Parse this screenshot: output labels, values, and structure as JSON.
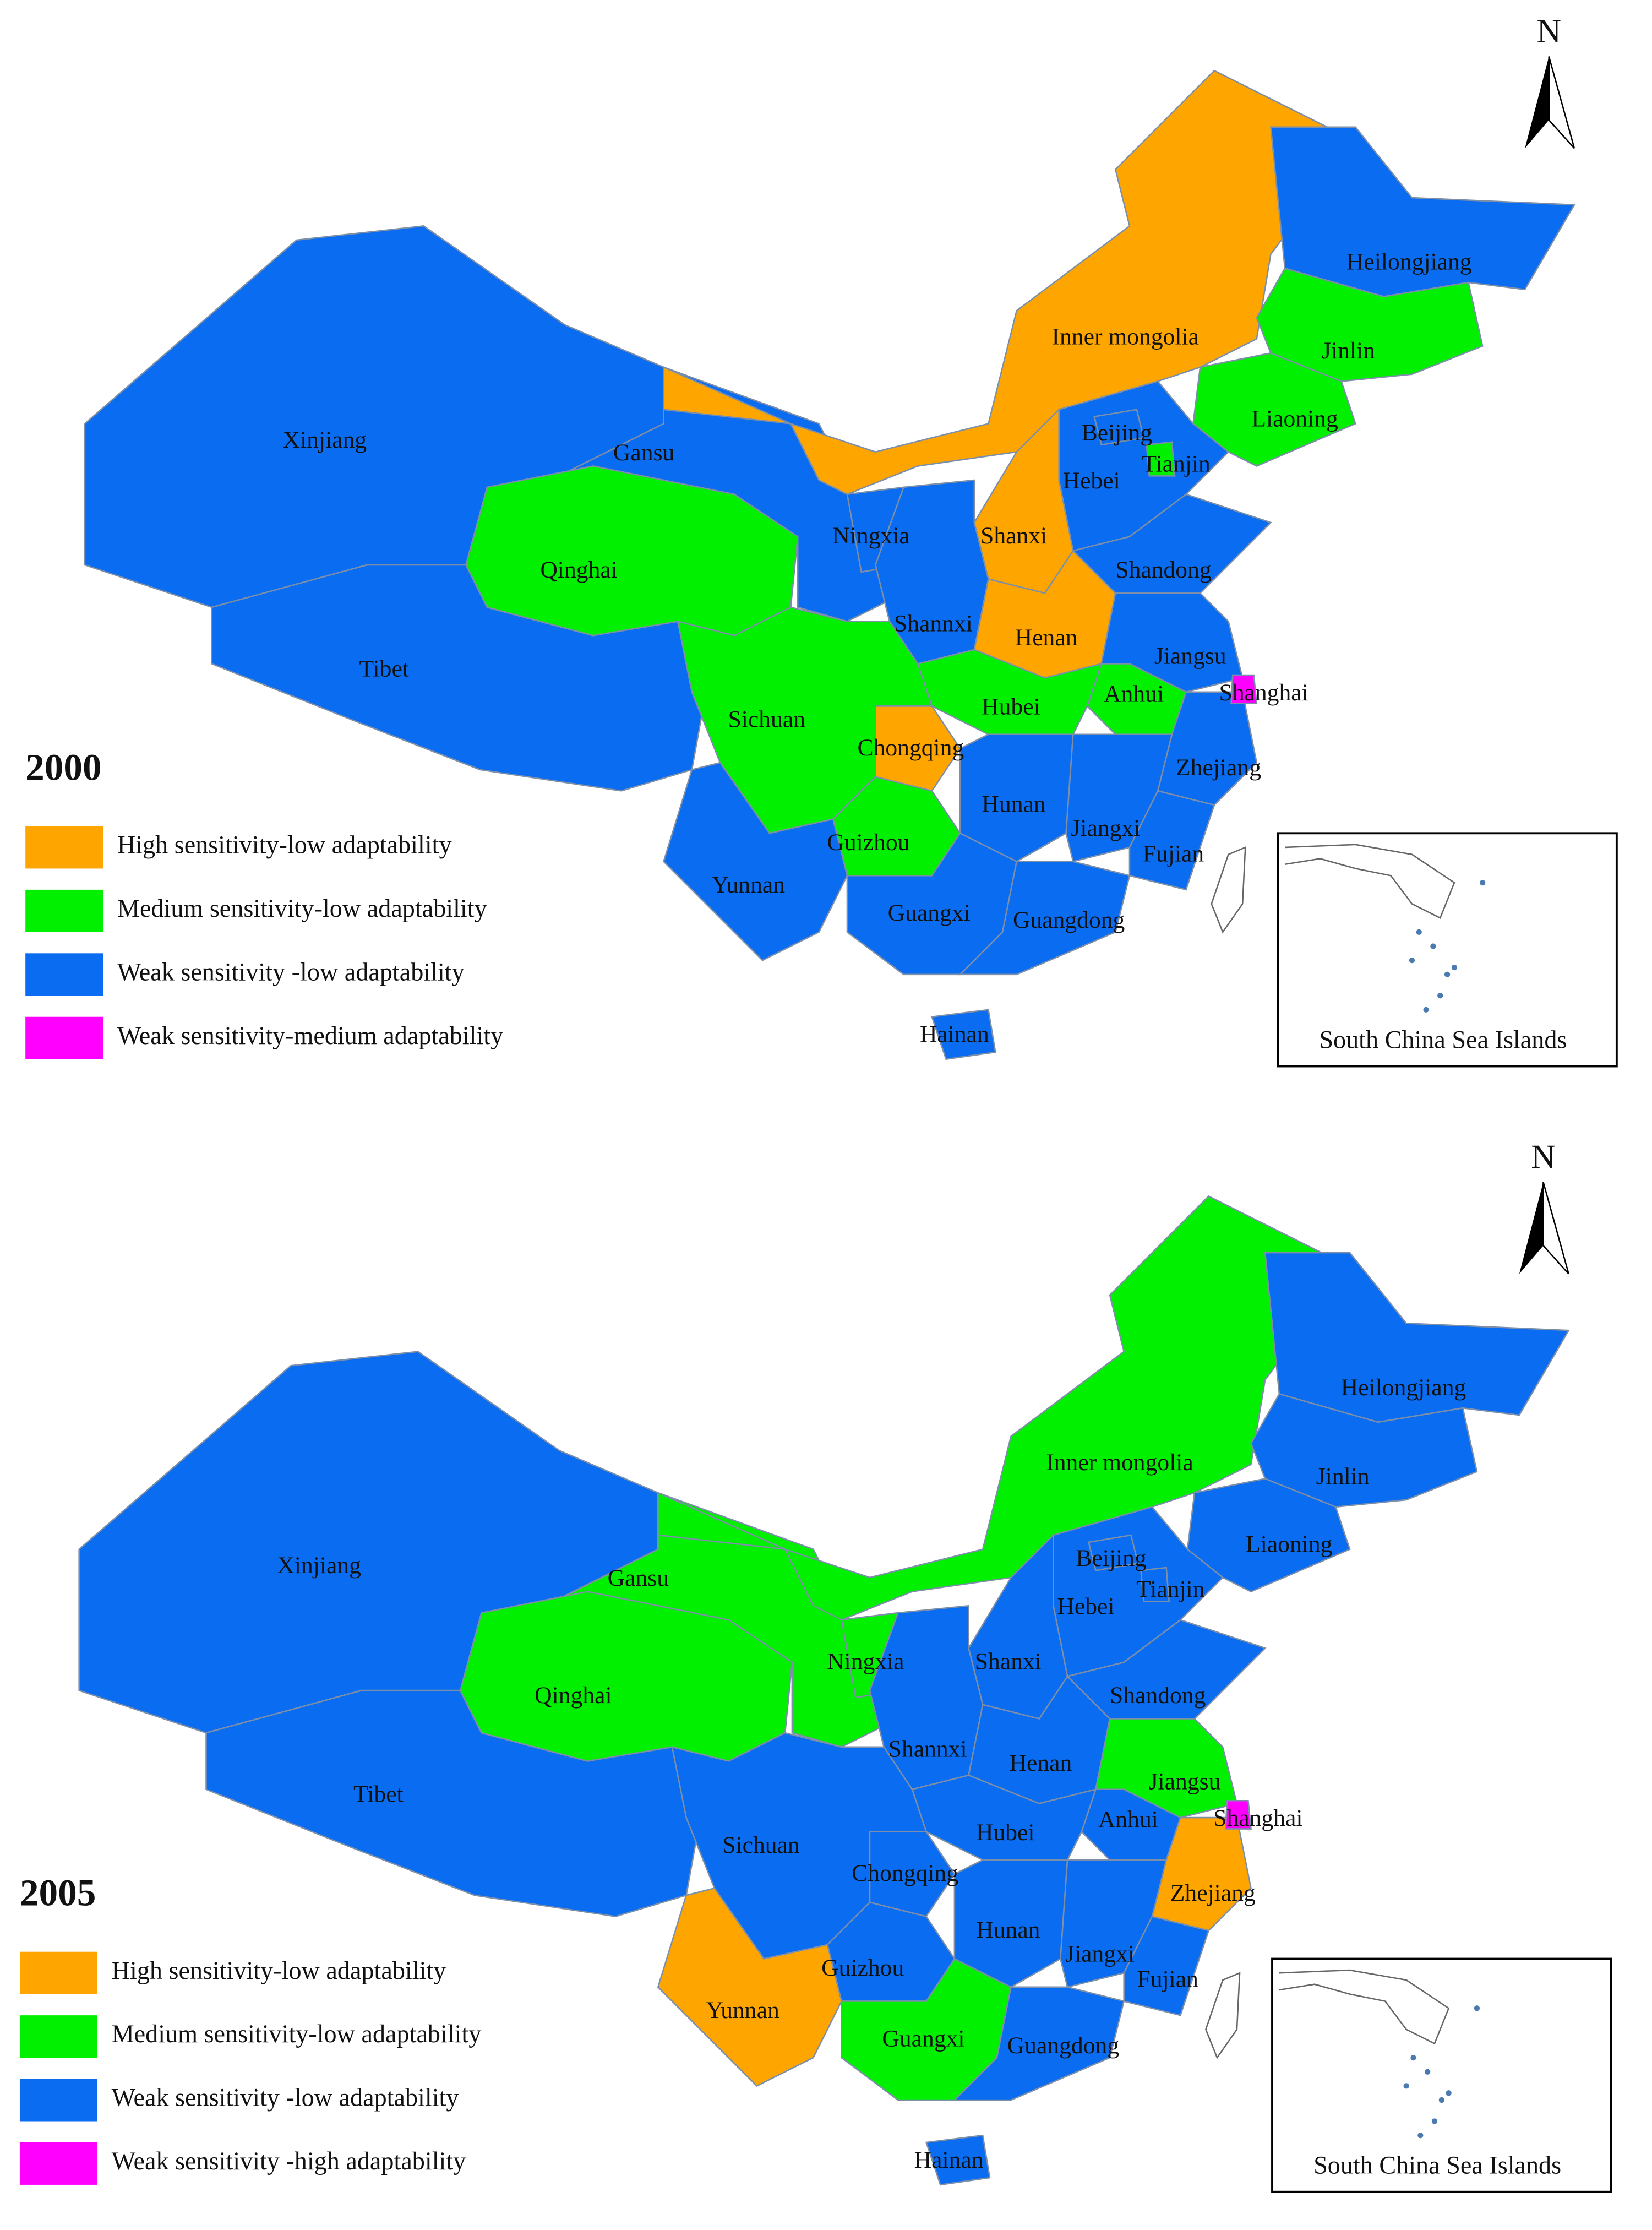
{
  "north": "N",
  "inset_label": "South China Sea Islands",
  "maps": [
    {
      "year": "2000",
      "legend": [
        {
          "label": "High sensitivity-low adaptability",
          "color": "#ffa500"
        },
        {
          "label": "Medium sensitivity-low adaptability",
          "color": "#00f000"
        },
        {
          "label": "Weak sensitivity -low adaptability",
          "color": "#0a6cf0"
        },
        {
          "label": "Weak sensitivity-medium adaptability",
          "color": "#ff00ff"
        }
      ],
      "provinces": [
        {
          "name": "Xinjiang",
          "category": 2
        },
        {
          "name": "Tibet",
          "category": 2
        },
        {
          "name": "Qinghai",
          "category": 1
        },
        {
          "name": "Gansu",
          "category": 2
        },
        {
          "name": "Inner mongolia",
          "category": 0
        },
        {
          "name": "Heilongjiang",
          "category": 2
        },
        {
          "name": "Jinlin",
          "category": 1
        },
        {
          "name": "Liaoning",
          "category": 1
        },
        {
          "name": "Hebei",
          "category": 2
        },
        {
          "name": "Beijing",
          "category": 2
        },
        {
          "name": "Tianjin",
          "category": 1
        },
        {
          "name": "Shanxi",
          "category": 0
        },
        {
          "name": "Ningxia",
          "category": 2
        },
        {
          "name": "Shannxi",
          "category": 2
        },
        {
          "name": "Henan",
          "category": 0
        },
        {
          "name": "Shandong",
          "category": 2
        },
        {
          "name": "Jiangsu",
          "category": 2
        },
        {
          "name": "Shanghai",
          "category": 3
        },
        {
          "name": "Anhui",
          "category": 1
        },
        {
          "name": "Zhejiang",
          "category": 2
        },
        {
          "name": "Hubei",
          "category": 1
        },
        {
          "name": "Chongqing",
          "category": 0
        },
        {
          "name": "Sichuan",
          "category": 1
        },
        {
          "name": "Hunan",
          "category": 2
        },
        {
          "name": "Jiangxi",
          "category": 2
        },
        {
          "name": "Fujian",
          "category": 2
        },
        {
          "name": "Guizhou",
          "category": 1
        },
        {
          "name": "Yunnan",
          "category": 2
        },
        {
          "name": "Guangxi",
          "category": 2
        },
        {
          "name": "Guangdong",
          "category": 2
        },
        {
          "name": "Hainan",
          "category": 2
        }
      ]
    },
    {
      "year": "2005",
      "legend": [
        {
          "label": "High sensitivity-low adaptability",
          "color": "#ffa500"
        },
        {
          "label": "Medium sensitivity-low adaptability",
          "color": "#00f000"
        },
        {
          "label": "Weak sensitivity -low adaptability",
          "color": "#0a6cf0"
        },
        {
          "label": "Weak sensitivity -high adaptability",
          "color": "#ff00ff"
        }
      ],
      "provinces": [
        {
          "name": "Xinjiang",
          "category": 2
        },
        {
          "name": "Tibet",
          "category": 2
        },
        {
          "name": "Qinghai",
          "category": 1
        },
        {
          "name": "Gansu",
          "category": 1
        },
        {
          "name": "Inner mongolia",
          "category": 1
        },
        {
          "name": "Heilongjiang",
          "category": 2
        },
        {
          "name": "Jinlin",
          "category": 2
        },
        {
          "name": "Liaoning",
          "category": 2
        },
        {
          "name": "Hebei",
          "category": 2
        },
        {
          "name": "Beijing",
          "category": 2
        },
        {
          "name": "Tianjin",
          "category": 2
        },
        {
          "name": "Shanxi",
          "category": 2
        },
        {
          "name": "Ningxia",
          "category": 1
        },
        {
          "name": "Shannxi",
          "category": 2
        },
        {
          "name": "Henan",
          "category": 2
        },
        {
          "name": "Shandong",
          "category": 2
        },
        {
          "name": "Jiangsu",
          "category": 1
        },
        {
          "name": "Shanghai",
          "category": 3
        },
        {
          "name": "Anhui",
          "category": 2
        },
        {
          "name": "Zhejiang",
          "category": 0
        },
        {
          "name": "Hubei",
          "category": 2
        },
        {
          "name": "Chongqing",
          "category": 2
        },
        {
          "name": "Sichuan",
          "category": 2
        },
        {
          "name": "Hunan",
          "category": 2
        },
        {
          "name": "Jiangxi",
          "category": 2
        },
        {
          "name": "Fujian",
          "category": 2
        },
        {
          "name": "Guizhou",
          "category": 2
        },
        {
          "name": "Yunnan",
          "category": 0
        },
        {
          "name": "Guangxi",
          "category": 1
        },
        {
          "name": "Guangdong",
          "category": 2
        },
        {
          "name": "Hainan",
          "category": 2
        }
      ]
    }
  ]
}
